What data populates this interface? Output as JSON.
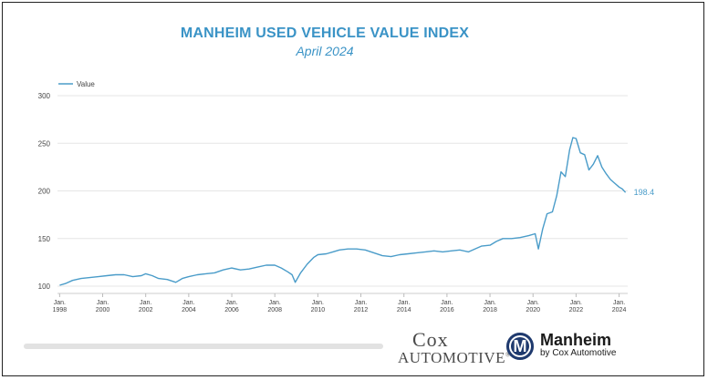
{
  "chart_data": {
    "type": "line",
    "title": "MANHEIM USED VEHICLE VALUE INDEX",
    "subtitle": "April 2024",
    "legend": [
      "Value"
    ],
    "legend_position": "top-left",
    "ylim": [
      100,
      300
    ],
    "yticks": [
      "100",
      "150",
      "200",
      "250",
      "300"
    ],
    "xlim": [
      1997.9,
      2024.4
    ],
    "xticks": [
      {
        "line1": "Jan.",
        "line2": "1998",
        "year": 1998
      },
      {
        "line1": "Jan.",
        "line2": "2000",
        "year": 2000
      },
      {
        "line1": "Jan.",
        "line2": "2002",
        "year": 2002
      },
      {
        "line1": "Jan.",
        "line2": "2004",
        "year": 2004
      },
      {
        "line1": "Jan.",
        "line2": "2006",
        "year": 2006
      },
      {
        "line1": "Jan.",
        "line2": "2008",
        "year": 2008
      },
      {
        "line1": "Jan.",
        "line2": "2010",
        "year": 2010
      },
      {
        "line1": "Jan.",
        "line2": "2012",
        "year": 2012
      },
      {
        "line1": "Jan.",
        "line2": "2014",
        "year": 2014
      },
      {
        "line1": "Jan.",
        "line2": "2016",
        "year": 2016
      },
      {
        "line1": "Jan.",
        "line2": "2018",
        "year": 2018
      },
      {
        "line1": "Jan.",
        "line2": "2020",
        "year": 2020
      },
      {
        "line1": "Jan.",
        "line2": "2022",
        "year": 2022
      },
      {
        "line1": "Jan.",
        "line2": "2024",
        "year": 2024
      }
    ],
    "grid": true,
    "last_value_label": "198.4",
    "series": [
      {
        "name": "Value",
        "x": [
          1998.0,
          1998.3,
          1998.6,
          1999.0,
          1999.4,
          1999.8,
          2000.2,
          2000.6,
          2001.0,
          2001.4,
          2001.8,
          2002.0,
          2002.3,
          2002.6,
          2003.0,
          2003.4,
          2003.7,
          2004.0,
          2004.4,
          2004.8,
          2005.2,
          2005.6,
          2006.0,
          2006.4,
          2006.8,
          2007.2,
          2007.6,
          2008.0,
          2008.3,
          2008.6,
          2008.8,
          2008.95,
          2009.2,
          2009.5,
          2009.8,
          2010.0,
          2010.4,
          2010.7,
          2011.0,
          2011.4,
          2011.8,
          2012.2,
          2012.6,
          2013.0,
          2013.4,
          2013.8,
          2014.2,
          2014.6,
          2015.0,
          2015.4,
          2015.8,
          2016.2,
          2016.6,
          2017.0,
          2017.3,
          2017.6,
          2018.0,
          2018.3,
          2018.6,
          2019.0,
          2019.4,
          2019.8,
          2020.1,
          2020.25,
          2020.45,
          2020.65,
          2020.9,
          2021.1,
          2021.3,
          2021.5,
          2021.7,
          2021.85,
          2022.0,
          2022.2,
          2022.4,
          2022.6,
          2022.8,
          2023.0,
          2023.2,
          2023.4,
          2023.6,
          2023.8,
          2024.0,
          2024.15,
          2024.3
        ],
        "values": [
          101,
          103,
          106,
          108,
          109,
          110,
          111,
          112,
          112,
          110,
          111,
          113,
          111,
          108,
          107,
          104,
          108,
          110,
          112,
          113,
          114,
          117,
          119,
          117,
          118,
          120,
          122,
          122,
          119,
          115,
          112,
          104,
          114,
          123,
          130,
          133,
          134,
          136,
          138,
          139,
          139,
          138,
          135,
          132,
          131,
          133,
          134,
          135,
          136,
          137,
          136,
          137,
          138,
          136,
          139,
          142,
          143,
          147,
          150,
          150,
          151,
          153,
          155,
          139,
          160,
          176,
          178,
          195,
          220,
          215,
          243,
          256,
          255,
          240,
          238,
          222,
          228,
          237,
          225,
          218,
          212,
          208,
          204,
          202,
          198.4
        ]
      }
    ]
  },
  "branding": {
    "cox_line1": "Cox",
    "cox_line2": "AUTOMOTIVE",
    "cox_tm": "®",
    "manheim_icon_letter": "M",
    "manheim_name": "Manheim",
    "manheim_sub": "by Cox Automotive"
  },
  "colors": {
    "line": "#4a9cc9",
    "title": "#3a93c6",
    "grid": "#e6e6e6",
    "axis_text": "#444444"
  }
}
